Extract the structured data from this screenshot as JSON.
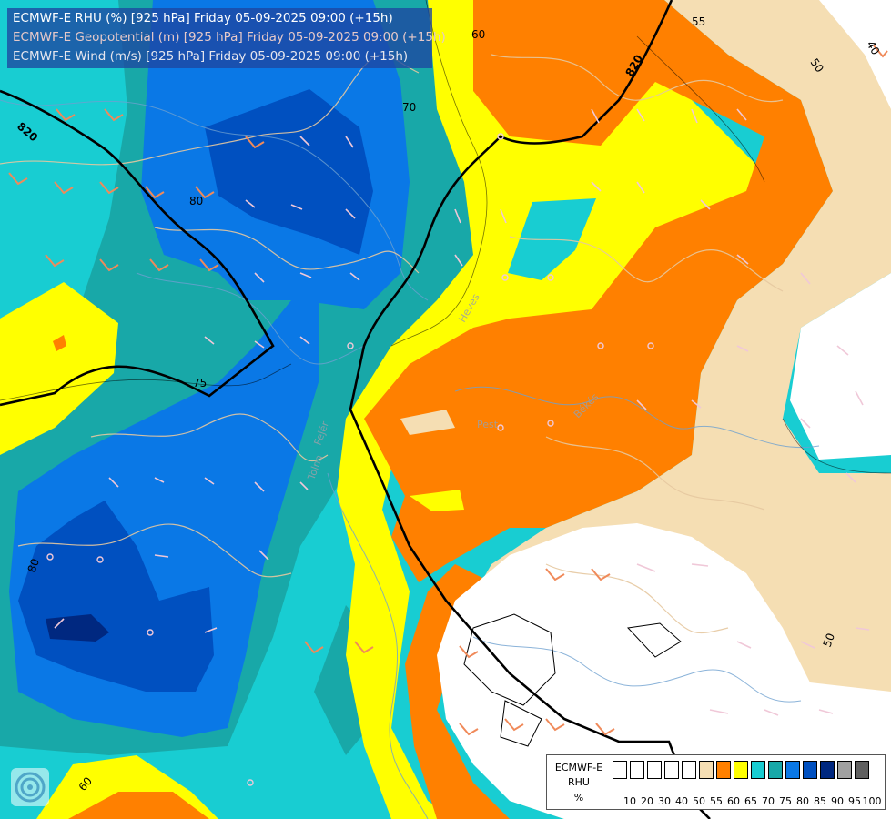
{
  "header": {
    "line1": "ECMWF-E RHU (%) [925 hPa] Friday 05-09-2025 09:00 (+15h)",
    "line2": "ECMWF-E Geopotential (m) [925 hPa] Friday 05-09-2025 09:00 (+15h)",
    "line3": "ECMWF-E Wind (m/s) [925 hPa] Friday 05-09-2025 09:00 (+15h)"
  },
  "legend": {
    "line1": "ECMWF-E",
    "line2": "RHU",
    "line3": "%",
    "ticks": [
      "10",
      "20",
      "30",
      "40",
      "50",
      "55",
      "60",
      "65",
      "70",
      "75",
      "80",
      "85",
      "90",
      "95",
      "100"
    ],
    "colors": [
      "#ffffff",
      "#ffffff",
      "#ffffff",
      "#ffffff",
      "#ffffff",
      "#f5deb3",
      "#ff8000",
      "#ffff00",
      "#18cdd2",
      "#18a8a8",
      "#0a78e6",
      "#0050c0",
      "#002880",
      "#a0a0a0",
      "#606060"
    ]
  },
  "contours": {
    "geopotential": [
      "820",
      "820",
      "820"
    ],
    "rhu": [
      "55",
      "60",
      "70",
      "80",
      "75",
      "80",
      "60",
      "50",
      "50",
      "40"
    ]
  },
  "places": [
    "Heves",
    "Pest",
    "Békés",
    "Tolna",
    "Fejér"
  ],
  "icons": {
    "logo": "ecmwf-logo-icon"
  }
}
